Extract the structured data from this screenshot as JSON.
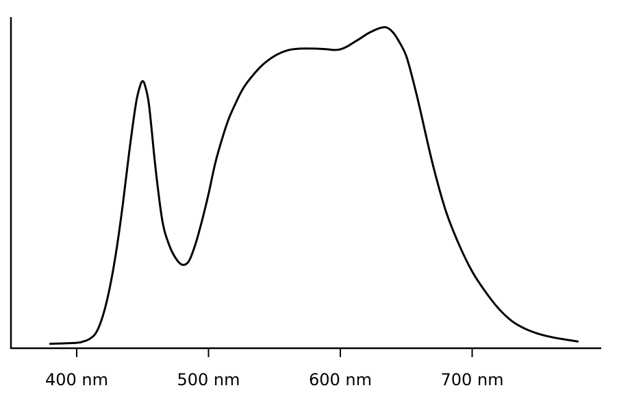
{
  "chart_data": {
    "type": "line",
    "title": "",
    "xlabel": "",
    "ylabel": "",
    "xlim": [
      350,
      800
    ],
    "ylim": [
      0,
      1.0
    ],
    "grid": false,
    "legend": "none",
    "x_ticks": [
      400,
      500,
      600,
      700
    ],
    "x_tick_labels": [
      "400 nm",
      "500 nm",
      "600 nm",
      "700 nm"
    ],
    "y_tick_labels": [],
    "line_color": "#000000",
    "series": [
      {
        "x": [
          380,
          400,
          405,
          410,
          415,
          420,
          425,
          430,
          435,
          440,
          445,
          448,
          450,
          452,
          455,
          460,
          465,
          470,
          475,
          480,
          485,
          490,
          495,
          500,
          505,
          510,
          515,
          520,
          525,
          530,
          540,
          550,
          560,
          570,
          580,
          590,
          595,
          600,
          605,
          610,
          615,
          620,
          625,
          630,
          635,
          640,
          645,
          650,
          655,
          660,
          670,
          680,
          690,
          700,
          710,
          720,
          730,
          740,
          750,
          760,
          770,
          780
        ],
        "y": [
          0.005,
          0.008,
          0.012,
          0.02,
          0.04,
          0.09,
          0.17,
          0.28,
          0.42,
          0.58,
          0.72,
          0.77,
          0.785,
          0.77,
          0.71,
          0.52,
          0.37,
          0.3,
          0.26,
          0.24,
          0.25,
          0.3,
          0.37,
          0.45,
          0.54,
          0.61,
          0.67,
          0.715,
          0.755,
          0.785,
          0.83,
          0.86,
          0.877,
          0.882,
          0.882,
          0.88,
          0.878,
          0.88,
          0.888,
          0.9,
          0.912,
          0.925,
          0.935,
          0.943,
          0.945,
          0.93,
          0.9,
          0.86,
          0.79,
          0.71,
          0.54,
          0.4,
          0.3,
          0.22,
          0.16,
          0.11,
          0.073,
          0.05,
          0.035,
          0.025,
          0.018,
          0.012
        ]
      }
    ]
  }
}
